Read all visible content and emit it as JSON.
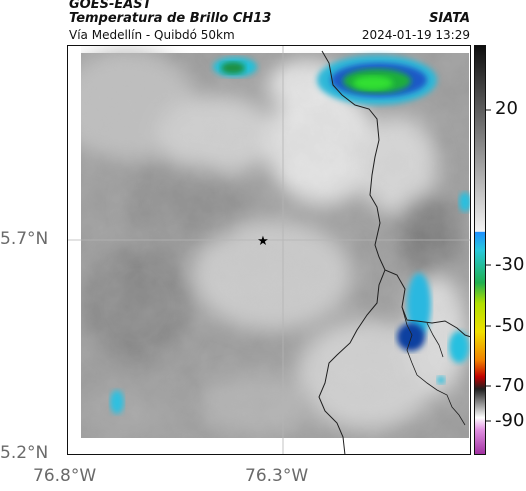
{
  "header": {
    "satellite": "GOES-EAST",
    "product": "Temperatura de Brillo CH13",
    "region": "Vía Medellín - Quibdó 50km",
    "org": "SIATA",
    "datetime": "2024-01-19 13:29"
  },
  "axes": {
    "lat_labels": [
      "5.7°N",
      "5.2°N"
    ],
    "lon_labels": [
      "76.8°W",
      "76.3°W"
    ]
  },
  "colorbar": {
    "tick_labels": [
      "20",
      "-30",
      "-50",
      "-70",
      "-90"
    ],
    "colors": {
      "warm_gray_top": "#1a1a1a",
      "cold_cyan": "#28c8dc",
      "deep_blue": "#1030a0",
      "green": "#20d020",
      "yellow": "#f0f000",
      "red": "#d00000",
      "magenta": "#d040c0"
    }
  },
  "map": {
    "marker": "star-icon",
    "colors": {
      "cloud_light": "#e6e6e6",
      "ground_gray": "#8c8c8c",
      "cloud_cold_green": "#22dd22",
      "cloud_cold_blue": "#1878d0",
      "border_line": "#222222",
      "grid_line": "#b4b4b4"
    }
  }
}
